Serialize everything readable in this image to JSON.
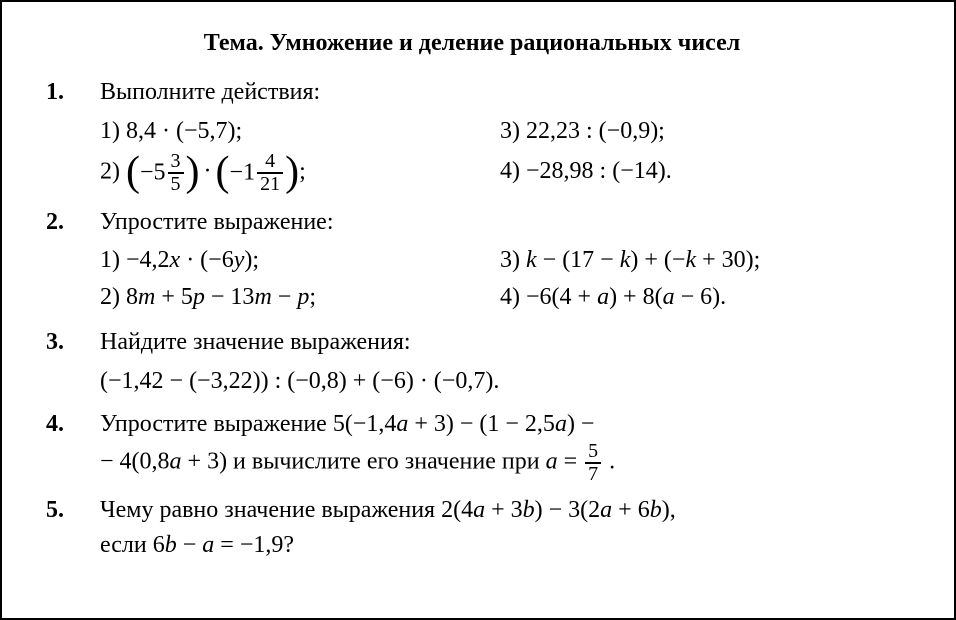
{
  "title": "Тема. Умножение и деление рациональных чисел",
  "colors": {
    "background": "#ffffff",
    "text": "#000000",
    "border": "#000000"
  },
  "typography": {
    "font_family": "Times New Roman, serif",
    "body_fontsize": 24,
    "title_fontsize": 24,
    "frac_fontsize": 20
  },
  "tasks": {
    "t1": {
      "num": "1.",
      "instruct": "Выполните действия:",
      "s1_prefix": "1) 8,4 · (−5,7);",
      "s2_prefix": "2) ",
      "s2_int1": "−5",
      "s2_fr1_num": "3",
      "s2_fr1_den": "5",
      "s2_dot": "·",
      "s2_int2": "−1",
      "s2_fr2_num": "4",
      "s2_fr2_den": "21",
      "s2_suffix": ";",
      "s3": "3) 22,23 : (−0,9);",
      "s4": "4) −28,98 : (−14)."
    },
    "t2": {
      "num": "2.",
      "instruct": "Упростите выражение:",
      "s1a": "1) −4,2",
      "s1_x": "x",
      "s1b": " · (−6",
      "s1_y": "y",
      "s1c": ");",
      "s2a": "2) 8",
      "s2_m1": "m",
      "s2b": " + 5",
      "s2_p1": "p",
      "s2c": " − 13",
      "s2_m2": "m",
      "s2d": " − ",
      "s2_p2": "p",
      "s2e": ";",
      "s3a": "3) ",
      "s3_k1": "k",
      "s3b": " − (17 − ",
      "s3_k2": "k",
      "s3c": ") + (−",
      "s3_k3": "k",
      "s3d": " + 30);",
      "s4a": "4) −6(4 + ",
      "s4_a1": "a",
      "s4b": ") + 8(",
      "s4_a2": "a",
      "s4c": " − 6)."
    },
    "t3": {
      "num": "3.",
      "instruct": "Найдите значение выражения:",
      "expr": "(−1,42 − (−3,22)) : (−0,8) + (−6) · (−0,7)."
    },
    "t4": {
      "num": "4.",
      "l1a": "Упростите выражение 5(−1,4",
      "l1_a1": "a",
      "l1b": " + 3) − (1 − 2,5",
      "l1_a2": "a",
      "l1c": ") −",
      "l2a": "− 4(0,8",
      "l2_a1": "a",
      "l2b": " + 3) и вычислите его значение при ",
      "l2_a2": "a",
      "l2c": " = ",
      "fr_num": "5",
      "fr_den": "7",
      "l2d": " ."
    },
    "t5": {
      "num": "5.",
      "a": "Чему равно значение выражения 2(4",
      "v1": "a",
      "b": " + 3",
      "v2": "b",
      "c": ") − 3(2",
      "v3": "a",
      "d": " + 6",
      "v4": "b",
      "e": "),",
      "l2a": "если 6",
      "l2_b": "b",
      "l2b": " − ",
      "l2_a": "a",
      "l2c": " = −1,9?"
    }
  }
}
